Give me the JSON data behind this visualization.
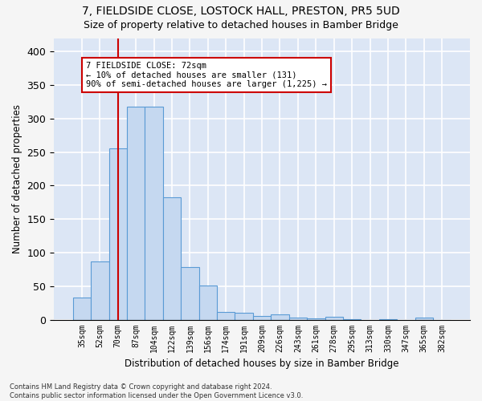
{
  "title_line1": "7, FIELDSIDE CLOSE, LOSTOCK HALL, PRESTON, PR5 5UD",
  "title_line2": "Size of property relative to detached houses in Bamber Bridge",
  "xlabel": "Distribution of detached houses by size in Bamber Bridge",
  "ylabel": "Number of detached properties",
  "footnote": "Contains HM Land Registry data © Crown copyright and database right 2024.\nContains public sector information licensed under the Open Government Licence v3.0.",
  "categories": [
    "35sqm",
    "52sqm",
    "70sqm",
    "87sqm",
    "104sqm",
    "122sqm",
    "139sqm",
    "156sqm",
    "174sqm",
    "191sqm",
    "209sqm",
    "226sqm",
    "243sqm",
    "261sqm",
    "278sqm",
    "295sqm",
    "313sqm",
    "330sqm",
    "347sqm",
    "365sqm",
    "382sqm"
  ],
  "values": [
    33,
    87,
    256,
    318,
    318,
    183,
    79,
    51,
    12,
    10,
    6,
    8,
    3,
    2,
    4,
    1,
    0,
    1,
    0,
    3,
    0
  ],
  "bar_color": "#c5d8f0",
  "bar_edge_color": "#5a9bd5",
  "annotation_text": "7 FIELDSIDE CLOSE: 72sqm\n← 10% of detached houses are smaller (131)\n90% of semi-detached houses are larger (1,225) →",
  "vline_x": 2.0,
  "annotation_box_color": "#ffffff",
  "annotation_box_edge": "#cc0000",
  "vline_color": "#cc0000",
  "ylim": [
    0,
    420
  ],
  "yticks": [
    0,
    50,
    100,
    150,
    200,
    250,
    300,
    350,
    400
  ],
  "background_color": "#dce6f5",
  "grid_color": "#ffffff",
  "title_fontsize": 10,
  "subtitle_fontsize": 9,
  "tick_fontsize": 7,
  "ylabel_fontsize": 8.5,
  "xlabel_fontsize": 8.5,
  "annotation_fontsize": 7.5
}
